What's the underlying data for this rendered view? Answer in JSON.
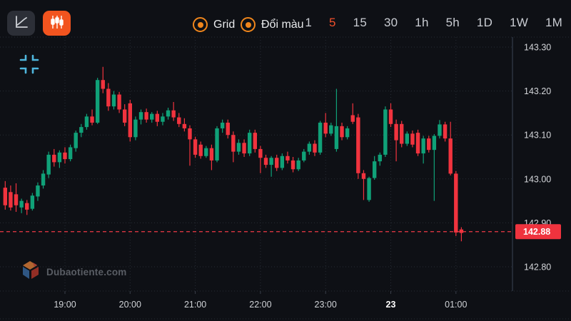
{
  "header": {
    "chart_type_buttons": [
      {
        "name": "line-chart",
        "active": false
      },
      {
        "name": "candlestick-chart",
        "active": true
      }
    ],
    "toggles": [
      {
        "label": "Grid"
      },
      {
        "label": "Đổi màu"
      }
    ],
    "timeframes": {
      "options": [
        "1",
        "5",
        "15",
        "30",
        "1h",
        "5h",
        "1D",
        "1W",
        "1M"
      ],
      "selected": "5"
    }
  },
  "watermark": {
    "text": "Dubaotiente.com"
  },
  "current_price_label": "142.88",
  "colors": {
    "background": "#0e1015",
    "up_candle": "#10a178",
    "down_candle": "#f1333e",
    "current_price_tag": "#ef333e",
    "current_price_line": "#ef3a45",
    "accent_orange_button": "#f2541f",
    "toggle_orange": "#f0861c",
    "selected_timeframe": "#f0502b",
    "grid": "#272c35",
    "axis_text": "#d4d6da"
  },
  "chart_data": {
    "type": "candlestick",
    "title": "",
    "xlabel": "",
    "ylabel": "",
    "grid": true,
    "price_ticks": [
      "143.30",
      "143.20",
      "143.10",
      "143.00",
      "142.90",
      "142.80"
    ],
    "time_ticks": [
      "19:00",
      "20:00",
      "21:00",
      "22:00",
      "23:00",
      "23",
      "01:00"
    ],
    "ylim": [
      142.75,
      143.32
    ],
    "current_price": 142.88,
    "candles": [
      [
        "18:05",
        142.98,
        142.995,
        142.93,
        142.94
      ],
      [
        "18:10",
        142.97,
        142.985,
        142.928,
        142.935
      ],
      [
        "18:15",
        142.965,
        142.99,
        142.925,
        142.94
      ],
      [
        "18:20",
        142.935,
        142.955,
        142.922,
        142.95
      ],
      [
        "18:25",
        142.945,
        142.952,
        142.918,
        142.93
      ],
      [
        "18:30",
        142.932,
        142.968,
        142.928,
        142.962
      ],
      [
        "18:35",
        142.96,
        142.992,
        142.95,
        142.985
      ],
      [
        "18:40",
        142.985,
        143.02,
        142.978,
        143.012
      ],
      [
        "18:45",
        143.01,
        143.062,
        143.002,
        143.055
      ],
      [
        "18:50",
        143.055,
        143.068,
        143.028,
        143.038
      ],
      [
        "18:55",
        143.038,
        143.065,
        143.025,
        143.06
      ],
      [
        "19:00",
        143.06,
        143.072,
        143.035,
        143.045
      ],
      [
        "19:05",
        143.045,
        143.078,
        143.04,
        143.072
      ],
      [
        "19:10",
        143.07,
        143.11,
        143.062,
        143.105
      ],
      [
        "19:15",
        143.105,
        143.125,
        143.095,
        143.118
      ],
      [
        "19:20",
        143.118,
        143.148,
        143.112,
        143.142
      ],
      [
        "19:25",
        143.142,
        143.158,
        143.122,
        143.128
      ],
      [
        "19:30",
        143.128,
        143.23,
        143.125,
        143.225
      ],
      [
        "19:35",
        143.225,
        143.255,
        143.195,
        143.205
      ],
      [
        "19:40",
        143.205,
        143.218,
        143.155,
        143.165
      ],
      [
        "19:45",
        143.165,
        143.2,
        143.158,
        143.192
      ],
      [
        "19:50",
        143.192,
        143.198,
        143.15,
        143.158
      ],
      [
        "19:55",
        143.158,
        143.17,
        143.12,
        143.128
      ],
      [
        "20:00",
        143.172,
        143.18,
        143.085,
        143.095
      ],
      [
        "20:05",
        143.095,
        143.142,
        143.088,
        143.135
      ],
      [
        "20:10",
        143.135,
        143.158,
        143.124,
        143.152
      ],
      [
        "20:15",
        143.152,
        143.16,
        143.128,
        143.135
      ],
      [
        "20:20",
        143.135,
        143.152,
        143.128,
        143.148
      ],
      [
        "20:25",
        143.148,
        143.155,
        143.12,
        143.13
      ],
      [
        "20:30",
        143.13,
        143.15,
        143.122,
        143.142
      ],
      [
        "20:35",
        143.142,
        143.162,
        143.135,
        143.156
      ],
      [
        "20:40",
        143.156,
        143.175,
        143.132,
        143.14
      ],
      [
        "20:45",
        143.14,
        143.15,
        143.118,
        143.125
      ],
      [
        "20:50",
        143.125,
        143.138,
        143.108,
        143.115
      ],
      [
        "20:55",
        143.115,
        143.122,
        143.03,
        143.09
      ],
      [
        "21:00",
        143.09,
        143.096,
        143.048,
        143.055
      ],
      [
        "21:05",
        143.078,
        143.085,
        143.046,
        143.052
      ],
      [
        "21:10",
        143.052,
        143.075,
        143.048,
        143.07
      ],
      [
        "21:15",
        143.07,
        143.078,
        143.02,
        143.042
      ],
      [
        "21:20",
        143.042,
        143.12,
        143.038,
        143.115
      ],
      [
        "21:25",
        143.115,
        143.135,
        143.105,
        143.128
      ],
      [
        "21:30",
        143.128,
        143.135,
        143.092,
        143.1
      ],
      [
        "21:35",
        143.1,
        143.108,
        143.038,
        143.062
      ],
      [
        "21:40",
        143.062,
        143.09,
        143.055,
        143.082
      ],
      [
        "21:45",
        143.082,
        143.09,
        143.05,
        143.058
      ],
      [
        "21:50",
        143.058,
        143.112,
        143.052,
        143.105
      ],
      [
        "21:55",
        143.105,
        143.112,
        143.06,
        143.068
      ],
      [
        "22:00",
        143.068,
        143.075,
        143.013,
        143.048
      ],
      [
        "22:05",
        143.048,
        143.055,
        143.025,
        143.032
      ],
      [
        "22:10",
        143.032,
        143.052,
        143.005,
        143.048
      ],
      [
        "22:15",
        143.048,
        143.055,
        143.018,
        143.025
      ],
      [
        "22:20",
        143.025,
        143.058,
        143.02,
        143.052
      ],
      [
        "22:25",
        143.052,
        143.062,
        143.035,
        143.042
      ],
      [
        "22:30",
        143.042,
        143.05,
        143.015,
        143.022
      ],
      [
        "22:35",
        143.022,
        143.048,
        143.018,
        143.042
      ],
      [
        "22:40",
        143.042,
        143.068,
        143.038,
        143.062
      ],
      [
        "22:45",
        143.062,
        143.085,
        143.055,
        143.08
      ],
      [
        "22:50",
        143.08,
        143.088,
        143.052,
        143.06
      ],
      [
        "22:55",
        143.06,
        143.132,
        143.055,
        143.128
      ],
      [
        "23:00",
        143.128,
        143.15,
        143.095,
        143.103
      ],
      [
        "23:05",
        143.103,
        143.128,
        143.098,
        143.122
      ],
      [
        "23:10",
        143.068,
        143.205,
        143.062,
        143.12
      ],
      [
        "23:15",
        143.12,
        143.128,
        143.088,
        143.095
      ],
      [
        "23:20",
        143.095,
        143.12,
        143.09,
        143.115
      ],
      [
        "23:25",
        143.145,
        143.172,
        143.125,
        143.13
      ],
      [
        "23:30",
        143.14,
        143.148,
        143.0,
        143.013
      ],
      [
        "23:35",
        143.013,
        143.02,
        142.952,
        143.0
      ],
      [
        "23:40",
        142.952,
        143.005,
        142.948,
        143.002
      ],
      [
        "23:45",
        143.002,
        143.052,
        142.998,
        143.04
      ],
      [
        "23:50",
        143.04,
        143.06,
        143.03,
        143.055
      ],
      [
        "23:55",
        143.055,
        143.165,
        143.05,
        143.158
      ],
      [
        "00:00",
        143.158,
        143.172,
        143.118,
        143.125
      ],
      [
        "00:05",
        143.125,
        143.135,
        143.04,
        143.088
      ],
      [
        "00:10",
        143.125,
        143.132,
        143.072,
        143.08
      ],
      [
        "00:15",
        143.08,
        143.108,
        143.075,
        143.103
      ],
      [
        "00:20",
        143.103,
        143.11,
        143.072,
        143.078
      ],
      [
        "00:25",
        143.105,
        143.112,
        143.052,
        143.058
      ],
      [
        "00:30",
        143.058,
        143.098,
        143.035,
        143.092
      ],
      [
        "00:35",
        143.092,
        143.098,
        143.06,
        143.066
      ],
      [
        "00:40",
        143.066,
        143.102,
        142.95,
        143.098
      ],
      [
        "00:45",
        143.098,
        143.134,
        143.092,
        143.124
      ],
      [
        "00:50",
        143.124,
        143.13,
        143.085,
        143.092
      ],
      [
        "00:55",
        143.092,
        143.13,
        143.008,
        143.012
      ],
      [
        "01:00",
        143.012,
        143.018,
        142.87,
        142.878
      ],
      [
        "01:05",
        142.885,
        142.89,
        142.858,
        142.877
      ]
    ]
  }
}
